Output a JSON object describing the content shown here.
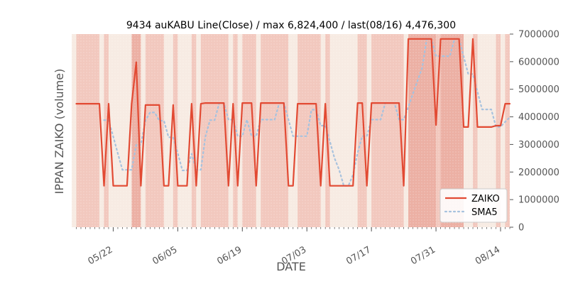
{
  "chart_data": {
    "type": "line",
    "title": "9434 auKABU Line(Close) / max 6,824,400 / last(08/16) 4,476,300",
    "xlabel": "DATE",
    "ylabel": "IPPAN ZAIKO (volume)",
    "ylim": [
      0,
      7000000
    ],
    "xlim": [
      "2025-05-13",
      "2025-08-16"
    ],
    "yticks": [
      0,
      1000000,
      2000000,
      3000000,
      4000000,
      5000000,
      6000000,
      7000000
    ],
    "ytick_labels": [
      "0",
      "1000000",
      "2000000",
      "3000000",
      "4000000",
      "5000000",
      "6000000",
      "7000000"
    ],
    "xtick_dates": [
      "2025-05-22",
      "2025-06-05",
      "2025-06-19",
      "2025-07-03",
      "2025-07-17",
      "2025-07-31",
      "2025-08-14"
    ],
    "xtick_labels": [
      "05/22",
      "06/05",
      "06/19",
      "07/03",
      "07/17",
      "07/31",
      "08/14"
    ],
    "y_axis_position": "right",
    "legend_position": "bottom-right",
    "grid": false,
    "colors": {
      "zaiko": "#e24a33",
      "sma5": "#a7c2de",
      "band_dark": "#ecb0a4",
      "band_mid": "#f2c8be",
      "band_light": "#f7ebe3"
    },
    "series": [
      {
        "name": "ZAIKO",
        "style": "solid",
        "points": [
          [
            "2025-05-14",
            4476300
          ],
          [
            "2025-05-15",
            4476300
          ],
          [
            "2025-05-16",
            4476300
          ],
          [
            "2025-05-17",
            4476300
          ],
          [
            "2025-05-18",
            4476300
          ],
          [
            "2025-05-19",
            4476300
          ],
          [
            "2025-05-20",
            1500000
          ],
          [
            "2025-05-21",
            4476300
          ],
          [
            "2025-05-22",
            1500000
          ],
          [
            "2025-05-23",
            1500000
          ],
          [
            "2025-05-24",
            1500000
          ],
          [
            "2025-05-25",
            1500000
          ],
          [
            "2025-05-26",
            4476300
          ],
          [
            "2025-05-27",
            5980000
          ],
          [
            "2025-05-28",
            1500000
          ],
          [
            "2025-05-29",
            4430000
          ],
          [
            "2025-05-30",
            4430000
          ],
          [
            "2025-05-31",
            4430000
          ],
          [
            "2025-06-01",
            4430000
          ],
          [
            "2025-06-02",
            1500000
          ],
          [
            "2025-06-03",
            1500000
          ],
          [
            "2025-06-04",
            4430000
          ],
          [
            "2025-06-05",
            1500000
          ],
          [
            "2025-06-06",
            1500000
          ],
          [
            "2025-06-07",
            1500000
          ],
          [
            "2025-06-08",
            4476300
          ],
          [
            "2025-06-09",
            1500000
          ],
          [
            "2025-06-10",
            4476300
          ],
          [
            "2025-06-11",
            4500000
          ],
          [
            "2025-06-12",
            4500000
          ],
          [
            "2025-06-13",
            4500000
          ],
          [
            "2025-06-14",
            4500000
          ],
          [
            "2025-06-15",
            4500000
          ],
          [
            "2025-06-16",
            1500000
          ],
          [
            "2025-06-17",
            4476300
          ],
          [
            "2025-06-18",
            1500000
          ],
          [
            "2025-06-19",
            4500000
          ],
          [
            "2025-06-20",
            4500000
          ],
          [
            "2025-06-21",
            4500000
          ],
          [
            "2025-06-22",
            1500000
          ],
          [
            "2025-06-23",
            4500000
          ],
          [
            "2025-06-24",
            4500000
          ],
          [
            "2025-06-25",
            4500000
          ],
          [
            "2025-06-26",
            4500000
          ],
          [
            "2025-06-27",
            4500000
          ],
          [
            "2025-06-28",
            4500000
          ],
          [
            "2025-06-29",
            1500000
          ],
          [
            "2025-06-30",
            1500000
          ],
          [
            "2025-07-01",
            4476300
          ],
          [
            "2025-07-02",
            4476300
          ],
          [
            "2025-07-03",
            4476300
          ],
          [
            "2025-07-04",
            4476300
          ],
          [
            "2025-07-05",
            4476300
          ],
          [
            "2025-07-06",
            1500000
          ],
          [
            "2025-07-07",
            4476300
          ],
          [
            "2025-07-08",
            1500000
          ],
          [
            "2025-07-09",
            1500000
          ],
          [
            "2025-07-10",
            1500000
          ],
          [
            "2025-07-11",
            1500000
          ],
          [
            "2025-07-12",
            1500000
          ],
          [
            "2025-07-13",
            1500000
          ],
          [
            "2025-07-14",
            4500000
          ],
          [
            "2025-07-15",
            4500000
          ],
          [
            "2025-07-16",
            1500000
          ],
          [
            "2025-07-17",
            4500000
          ],
          [
            "2025-07-18",
            4500000
          ],
          [
            "2025-07-19",
            4500000
          ],
          [
            "2025-07-20",
            4500000
          ],
          [
            "2025-07-21",
            4500000
          ],
          [
            "2025-07-22",
            4500000
          ],
          [
            "2025-07-23",
            4500000
          ],
          [
            "2025-07-24",
            1500000
          ],
          [
            "2025-07-25",
            6824400
          ],
          [
            "2025-07-26",
            6824400
          ],
          [
            "2025-07-27",
            6824400
          ],
          [
            "2025-07-28",
            6824400
          ],
          [
            "2025-07-29",
            6824400
          ],
          [
            "2025-07-30",
            6824400
          ],
          [
            "2025-07-31",
            3700000
          ],
          [
            "2025-08-01",
            6824400
          ],
          [
            "2025-08-02",
            6824400
          ],
          [
            "2025-08-03",
            6824400
          ],
          [
            "2025-08-04",
            6824400
          ],
          [
            "2025-08-05",
            6824400
          ],
          [
            "2025-08-06",
            3630000
          ],
          [
            "2025-08-07",
            3630000
          ],
          [
            "2025-08-08",
            6824400
          ],
          [
            "2025-08-09",
            3630000
          ],
          [
            "2025-08-10",
            3630000
          ],
          [
            "2025-08-11",
            3630000
          ],
          [
            "2025-08-12",
            3630000
          ],
          [
            "2025-08-13",
            3680000
          ],
          [
            "2025-08-14",
            3680000
          ],
          [
            "2025-08-15",
            4476300
          ],
          [
            "2025-08-16",
            4476300
          ]
        ]
      },
      {
        "name": "SMA5",
        "style": "dotted",
        "points": [
          [
            "2025-05-20",
            3880000
          ],
          [
            "2025-05-21",
            3880000
          ],
          [
            "2025-05-22",
            3280000
          ],
          [
            "2025-05-23",
            2680000
          ],
          [
            "2025-05-24",
            2080000
          ],
          [
            "2025-05-25",
            2080000
          ],
          [
            "2025-05-26",
            2080000
          ],
          [
            "2025-05-27",
            2990000
          ],
          [
            "2025-05-28",
            2990000
          ],
          [
            "2025-05-29",
            3870000
          ],
          [
            "2025-05-30",
            4160000
          ],
          [
            "2025-05-31",
            4160000
          ],
          [
            "2025-06-01",
            3860000
          ],
          [
            "2025-06-02",
            3860000
          ],
          [
            "2025-06-03",
            3260000
          ],
          [
            "2025-06-04",
            3260000
          ],
          [
            "2025-06-05",
            2680000
          ],
          [
            "2025-06-06",
            2060000
          ],
          [
            "2025-06-07",
            2060000
          ],
          [
            "2025-06-08",
            2660000
          ],
          [
            "2025-06-09",
            2080000
          ],
          [
            "2025-06-10",
            2080000
          ],
          [
            "2025-06-11",
            3280000
          ],
          [
            "2025-06-12",
            3880000
          ],
          [
            "2025-06-13",
            3880000
          ],
          [
            "2025-06-14",
            4500000
          ],
          [
            "2025-06-15",
            4500000
          ],
          [
            "2025-06-16",
            3900000
          ],
          [
            "2025-06-17",
            3900000
          ],
          [
            "2025-06-18",
            3300000
          ],
          [
            "2025-06-19",
            3300000
          ],
          [
            "2025-06-20",
            3900000
          ],
          [
            "2025-06-21",
            3300000
          ],
          [
            "2025-06-22",
            3300000
          ],
          [
            "2025-06-23",
            3900000
          ],
          [
            "2025-06-24",
            3900000
          ],
          [
            "2025-06-25",
            3900000
          ],
          [
            "2025-06-26",
            3900000
          ],
          [
            "2025-06-27",
            4500000
          ],
          [
            "2025-06-28",
            4500000
          ],
          [
            "2025-06-29",
            3900000
          ],
          [
            "2025-06-30",
            3300000
          ],
          [
            "2025-07-01",
            3300000
          ],
          [
            "2025-07-02",
            3300000
          ],
          [
            "2025-07-03",
            3300000
          ],
          [
            "2025-07-04",
            4260000
          ],
          [
            "2025-07-05",
            4260000
          ],
          [
            "2025-07-06",
            3680000
          ],
          [
            "2025-07-07",
            3680000
          ],
          [
            "2025-07-08",
            3100000
          ],
          [
            "2025-07-09",
            2500000
          ],
          [
            "2025-07-10",
            2080000
          ],
          [
            "2025-07-11",
            1500000
          ],
          [
            "2025-07-12",
            1500000
          ],
          [
            "2025-07-13",
            1900000
          ],
          [
            "2025-07-14",
            2700000
          ],
          [
            "2025-07-15",
            3300000
          ],
          [
            "2025-07-16",
            3300000
          ],
          [
            "2025-07-17",
            3900000
          ],
          [
            "2025-07-18",
            3900000
          ],
          [
            "2025-07-19",
            3900000
          ],
          [
            "2025-07-20",
            4500000
          ],
          [
            "2025-07-21",
            4500000
          ],
          [
            "2025-07-22",
            4500000
          ],
          [
            "2025-07-23",
            3900000
          ],
          [
            "2025-07-24",
            3900000
          ],
          [
            "2025-07-25",
            4360000
          ],
          [
            "2025-07-26",
            4840000
          ],
          [
            "2025-07-27",
            5310000
          ],
          [
            "2025-07-28",
            5780000
          ],
          [
            "2025-07-29",
            6820000
          ],
          [
            "2025-07-30",
            6820000
          ],
          [
            "2025-07-31",
            6200000
          ],
          [
            "2025-08-01",
            6200000
          ],
          [
            "2025-08-02",
            6200000
          ],
          [
            "2025-08-03",
            6200000
          ],
          [
            "2025-08-04",
            6820000
          ],
          [
            "2025-08-05",
            6820000
          ],
          [
            "2025-08-06",
            6180000
          ],
          [
            "2025-08-07",
            5550000
          ],
          [
            "2025-08-08",
            5550000
          ],
          [
            "2025-08-09",
            4910000
          ],
          [
            "2025-08-10",
            4270000
          ],
          [
            "2025-08-11",
            4270000
          ],
          [
            "2025-08-12",
            4270000
          ],
          [
            "2025-08-13",
            3640000
          ],
          [
            "2025-08-14",
            3640000
          ],
          [
            "2025-08-15",
            3820000
          ],
          [
            "2025-08-16",
            3980000
          ]
        ]
      }
    ],
    "background_bands": [
      {
        "start": "2025-05-13",
        "end": "2025-05-14",
        "shade": "light"
      },
      {
        "start": "2025-05-14",
        "end": "2025-05-19",
        "shade": "mid"
      },
      {
        "start": "2025-05-19",
        "end": "2025-05-20",
        "shade": "light"
      },
      {
        "start": "2025-05-20",
        "end": "2025-05-21",
        "shade": "mid"
      },
      {
        "start": "2025-05-21",
        "end": "2025-05-26",
        "shade": "light"
      },
      {
        "start": "2025-05-26",
        "end": "2025-05-28",
        "shade": "dark"
      },
      {
        "start": "2025-05-28",
        "end": "2025-05-29",
        "shade": "light"
      },
      {
        "start": "2025-05-29",
        "end": "2025-06-02",
        "shade": "mid"
      },
      {
        "start": "2025-06-02",
        "end": "2025-06-04",
        "shade": "light"
      },
      {
        "start": "2025-06-04",
        "end": "2025-06-05",
        "shade": "mid"
      },
      {
        "start": "2025-06-05",
        "end": "2025-06-08",
        "shade": "light"
      },
      {
        "start": "2025-06-08",
        "end": "2025-06-09",
        "shade": "mid"
      },
      {
        "start": "2025-06-09",
        "end": "2025-06-10",
        "shade": "light"
      },
      {
        "start": "2025-06-10",
        "end": "2025-06-16",
        "shade": "mid"
      },
      {
        "start": "2025-06-16",
        "end": "2025-06-17",
        "shade": "light"
      },
      {
        "start": "2025-06-17",
        "end": "2025-06-18",
        "shade": "mid"
      },
      {
        "start": "2025-06-18",
        "end": "2025-06-19",
        "shade": "light"
      },
      {
        "start": "2025-06-19",
        "end": "2025-06-22",
        "shade": "mid"
      },
      {
        "start": "2025-06-22",
        "end": "2025-06-23",
        "shade": "light"
      },
      {
        "start": "2025-06-23",
        "end": "2025-06-29",
        "shade": "mid"
      },
      {
        "start": "2025-06-29",
        "end": "2025-07-01",
        "shade": "light"
      },
      {
        "start": "2025-07-01",
        "end": "2025-07-06",
        "shade": "mid"
      },
      {
        "start": "2025-07-06",
        "end": "2025-07-07",
        "shade": "light"
      },
      {
        "start": "2025-07-07",
        "end": "2025-07-08",
        "shade": "mid"
      },
      {
        "start": "2025-07-08",
        "end": "2025-07-14",
        "shade": "light"
      },
      {
        "start": "2025-07-14",
        "end": "2025-07-16",
        "shade": "mid"
      },
      {
        "start": "2025-07-16",
        "end": "2025-07-17",
        "shade": "light"
      },
      {
        "start": "2025-07-17",
        "end": "2025-07-24",
        "shade": "mid"
      },
      {
        "start": "2025-07-24",
        "end": "2025-07-25",
        "shade": "light"
      },
      {
        "start": "2025-07-25",
        "end": "2025-07-31",
        "shade": "dark"
      },
      {
        "start": "2025-07-31",
        "end": "2025-08-01",
        "shade": "mid"
      },
      {
        "start": "2025-08-01",
        "end": "2025-08-06",
        "shade": "dark"
      },
      {
        "start": "2025-08-06",
        "end": "2025-08-08",
        "shade": "light"
      },
      {
        "start": "2025-08-08",
        "end": "2025-08-09",
        "shade": "mid"
      },
      {
        "start": "2025-08-09",
        "end": "2025-08-13",
        "shade": "light"
      },
      {
        "start": "2025-08-13",
        "end": "2025-08-14",
        "shade": "mid"
      },
      {
        "start": "2025-08-14",
        "end": "2025-08-15",
        "shade": "light"
      },
      {
        "start": "2025-08-15",
        "end": "2025-08-16",
        "shade": "mid"
      }
    ]
  }
}
